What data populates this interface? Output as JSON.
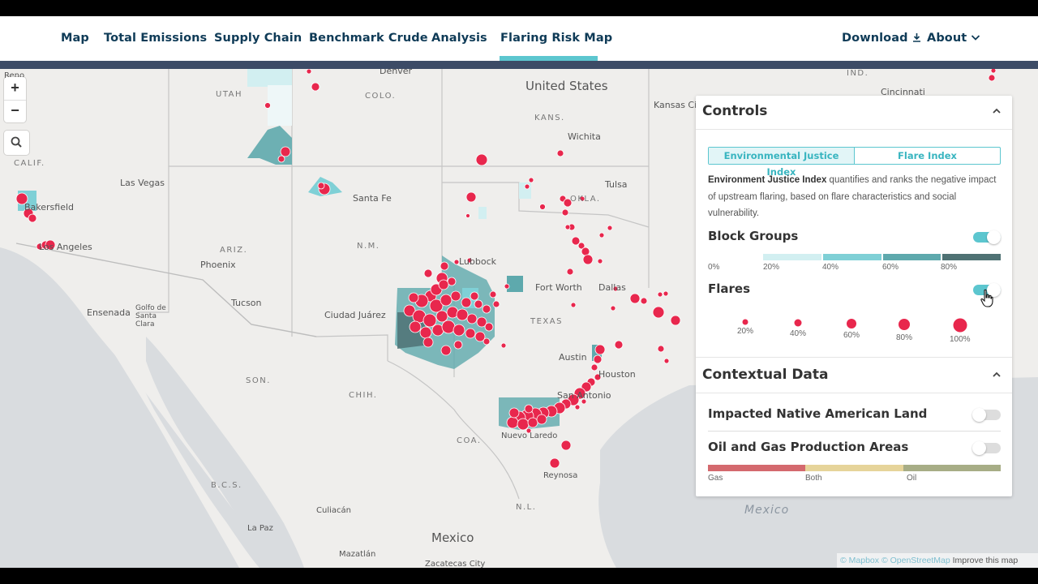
{
  "nav": {
    "items": [
      "Map",
      "Total Emissions",
      "Supply Chain",
      "Benchmark Crude",
      "Analysis",
      "Flaring Risk Map"
    ],
    "active": "Flaring Risk Map",
    "download_label": "Download",
    "about_label": "About"
  },
  "map": {
    "zoom_in": "+",
    "zoom_out": "−",
    "states": [
      "UTAH",
      "COLO.",
      "KANS.",
      "CALIF.",
      "ARIZ.",
      "N.M.",
      "OKLA.",
      "TEXAS",
      "SON.",
      "CHIH.",
      "COA.",
      "B.C.S.",
      "N.L.",
      "IND."
    ],
    "cities": [
      "Denver",
      "Wichita",
      "Kansas City",
      "Cincinnati",
      "Las Vegas",
      "Santa Fe",
      "Tulsa",
      "Bakersfield",
      "Los Angeles",
      "Phoenix",
      "Lubbock",
      "Fort Worth",
      "Dallas",
      "Tucson",
      "Ensenada",
      "Golfo de Santa Clara",
      "Ciudad Juárez",
      "Austin",
      "Houston",
      "San Antonio",
      "Nuevo Laredo",
      "Reynosa",
      "Culiacán",
      "La Paz",
      "Mazatlán",
      "Zacatecas City",
      "Reno"
    ],
    "countries": [
      "United States",
      "Mexico"
    ],
    "sea_label": "Mexico",
    "attribution": {
      "mapbox": "© Mapbox",
      "osm": "© OpenStreetMap",
      "improve": "Improve this map"
    }
  },
  "controls": {
    "title": "Controls",
    "tabs": [
      "Environmental Justice Index",
      "Flare Index"
    ],
    "active_tab": "Environmental Justice Index",
    "description_bold": "Environment Justice Index",
    "description_rest": " quantifies and ranks the negative impact of upstream flaring, based on flare characteristics and social vulnerability.",
    "block_groups": {
      "label": "Block Groups",
      "enabled": true,
      "legend_labels": [
        "0%",
        "20%",
        "40%",
        "60%",
        "80%"
      ],
      "legend_colors": [
        "#f1f7f8",
        "#d2eff1",
        "#7fd0d6",
        "#5ea9ad",
        "#4f7274"
      ]
    },
    "flares": {
      "label": "Flares",
      "enabled": true,
      "legend_labels": [
        "20%",
        "40%",
        "60%",
        "80%",
        "100%"
      ],
      "color": "#e8274d"
    }
  },
  "contextual": {
    "title": "Contextual Data",
    "native_land": {
      "label": "Impacted Native American Land",
      "enabled": false
    },
    "oil_gas": {
      "label": "Oil and Gas Production Areas",
      "enabled": false,
      "legend_labels": [
        "Gas",
        "Both",
        "Oil"
      ],
      "legend_colors": [
        "#d4696e",
        "#e6d49a",
        "#a7ad86"
      ]
    }
  }
}
